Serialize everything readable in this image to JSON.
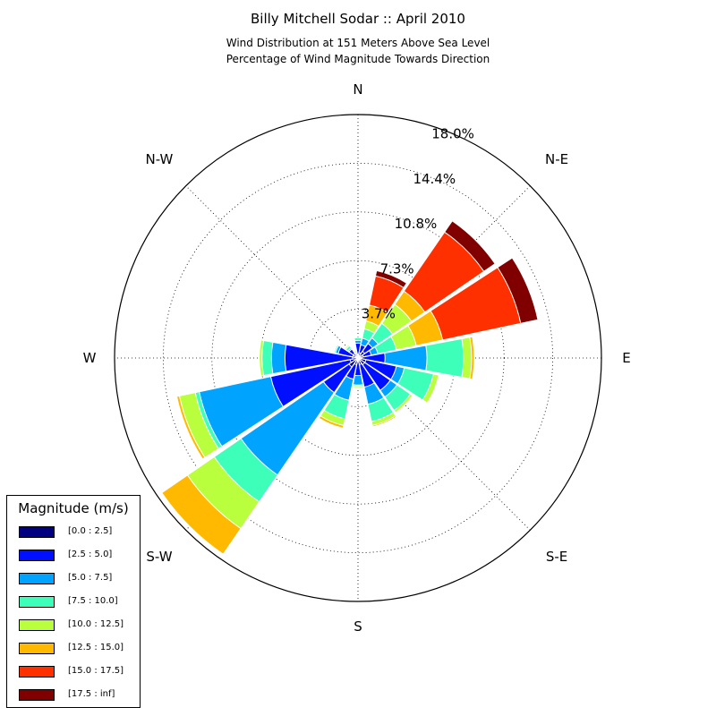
{
  "title": "Billy Mitchell Sodar :: April 2010",
  "subtitle_line1": "Wind Distribution at 151 Meters Above Sea Level",
  "subtitle_line2": "Percentage of Wind Magnitude Towards Direction",
  "chart_data": {
    "type": "windrose",
    "title": "Billy Mitchell Sodar :: April 2010",
    "subtitle": "Wind Distribution at 151 Meters Above Sea Level / Percentage of Wind Magnitude Towards Direction",
    "direction_labels": {
      "N": "N",
      "NE": "N-E",
      "E": "E",
      "SE": "S-E",
      "S": "S",
      "SW": "S-W",
      "W": "W",
      "NW": "N-W"
    },
    "radial_ticks": [
      "3.7%",
      "7.3%",
      "10.8%",
      "14.4%",
      "18.0%"
    ],
    "radial_max": 18.0,
    "legend_title": "Magnitude (m/s)",
    "bins": [
      {
        "label": "[0.0 : 2.5]",
        "color": "#000080"
      },
      {
        "label": "[2.5 : 5.0]",
        "color": "#0010ff"
      },
      {
        "label": "[5.0 : 7.5]",
        "color": "#00a4ff"
      },
      {
        "label": "[7.5 : 10.0]",
        "color": "#3dffba"
      },
      {
        "label": "[10.0 : 12.5]",
        "color": "#b9ff3d"
      },
      {
        "label": "[12.5 : 15.0]",
        "color": "#ffb900"
      },
      {
        "label": "[15.0 : 17.5]",
        "color": "#ff3000"
      },
      {
        "label": "[17.5 : inf]",
        "color": "#800000"
      }
    ],
    "directions_deg": [
      0,
      22.5,
      45,
      67.5,
      90,
      112.5,
      135,
      157.5,
      180,
      202.5,
      225,
      247.5,
      270,
      292.5,
      315,
      337.5
    ],
    "cumulative_percent": [
      [
        0.3,
        1.1,
        1.3,
        1.5,
        1.5,
        1.5,
        1.5,
        1.5
      ],
      [
        0.4,
        1.0,
        1.5,
        2.2,
        2.8,
        4.0,
        6.2,
        6.6
      ],
      [
        0.6,
        1.3,
        1.8,
        3.1,
        4.8,
        6.0,
        11.3,
        12.3
      ],
      [
        0.4,
        1.0,
        1.5,
        2.9,
        4.4,
        6.4,
        12.3,
        13.6
      ],
      [
        0.3,
        2.0,
        5.1,
        7.8,
        8.4,
        8.6,
        8.6,
        8.6
      ],
      [
        0.6,
        2.9,
        3.5,
        5.7,
        6.1,
        6.1,
        6.1,
        6.1
      ],
      [
        0.6,
        2.9,
        3.5,
        4.7,
        4.9,
        4.9,
        4.9,
        4.9
      ],
      [
        0.5,
        2.2,
        3.5,
        4.8,
        5.1,
        5.2,
        5.2,
        5.2
      ],
      [
        0.3,
        1.3,
        2.0,
        2.1,
        2.2,
        2.2,
        2.2,
        2.2
      ],
      [
        0.5,
        1.6,
        3.2,
        4.6,
        5.1,
        5.3,
        5.3,
        5.3
      ],
      [
        0.8,
        3.1,
        10.5,
        12.9,
        15.3,
        17.6,
        17.6,
        17.6
      ],
      [
        0.6,
        6.6,
        12.0,
        12.3,
        13.5,
        13.7,
        13.7,
        13.7
      ],
      [
        0.4,
        5.4,
        6.4,
        7.1,
        7.3,
        7.3,
        7.3,
        7.3
      ],
      [
        0.4,
        1.5,
        1.7,
        1.8,
        1.8,
        1.8,
        1.8,
        1.8
      ],
      [
        0.4,
        0.8,
        0.9,
        1.1,
        1.2,
        1.2,
        1.2,
        1.2
      ],
      [
        0.2,
        0.3,
        0.4,
        0.5,
        0.6,
        0.6,
        0.6,
        0.6
      ]
    ]
  }
}
